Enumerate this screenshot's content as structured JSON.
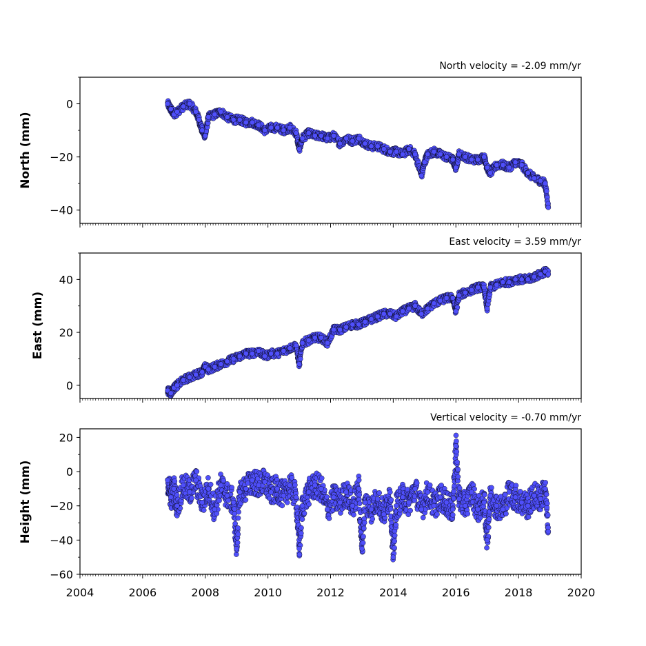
{
  "chart_data": [
    {
      "type": "scatter",
      "title": "North velocity = -2.09 mm/yr",
      "ylabel": "North (mm)",
      "xlabel": "",
      "xlim": [
        2004,
        2020
      ],
      "ylim": [
        -45,
        10
      ],
      "yticks": [
        0,
        -20,
        -40
      ],
      "marker_color": "#4f4ffb",
      "edge_color": "#000000",
      "series": [
        {
          "x": [
            2006.8,
            2006.9,
            2007.0,
            2007.1,
            2007.3,
            2007.5,
            2007.7,
            2007.8,
            2007.9,
            2008.0,
            2008.1,
            2008.3,
            2008.5,
            2008.7,
            2008.9,
            2009.1,
            2009.3,
            2009.5,
            2009.7,
            2009.9,
            2010.1,
            2010.3,
            2010.5,
            2010.7,
            2010.9,
            2011.0,
            2011.1,
            2011.3,
            2011.5,
            2011.7,
            2011.9,
            2012.1,
            2012.3,
            2012.5,
            2012.7,
            2012.9,
            2013.1,
            2013.3,
            2013.5,
            2013.7,
            2013.9,
            2014.1,
            2014.3,
            2014.5,
            2014.7,
            2014.9,
            2015.0,
            2015.1,
            2015.3,
            2015.5,
            2015.7,
            2015.9,
            2016.0,
            2016.1,
            2016.3,
            2016.5,
            2016.7,
            2016.9,
            2017.0,
            2017.1,
            2017.3,
            2017.5,
            2017.7,
            2017.9,
            2018.1,
            2018.3,
            2018.5,
            2018.7,
            2018.85,
            2018.95
          ],
          "y": [
            0,
            -2,
            -4,
            -3,
            -1,
            0,
            -3,
            -6,
            -10,
            -12,
            -5,
            -4,
            -3,
            -5,
            -6,
            -6,
            -7,
            -7,
            -8,
            -10,
            -9,
            -9,
            -10,
            -9,
            -11,
            -17,
            -13,
            -11,
            -12,
            -12,
            -13,
            -12,
            -15,
            -13,
            -14,
            -13,
            -15,
            -16,
            -16,
            -17,
            -18,
            -18,
            -19,
            -17,
            -19,
            -27,
            -22,
            -19,
            -18,
            -19,
            -20,
            -21,
            -24,
            -19,
            -20,
            -21,
            -21,
            -20,
            -24,
            -26,
            -23,
            -23,
            -24,
            -22,
            -23,
            -26,
            -28,
            -29,
            -30,
            -39
          ]
        }
      ]
    },
    {
      "type": "scatter",
      "title": "East velocity = 3.59 mm/yr",
      "ylabel": "East (mm)",
      "xlabel": "",
      "xlim": [
        2004,
        2020
      ],
      "ylim": [
        -5,
        50
      ],
      "yticks": [
        0,
        20,
        40
      ],
      "marker_color": "#4f4ffb",
      "edge_color": "#000000",
      "series": [
        {
          "x": [
            2006.8,
            2006.9,
            2007.0,
            2007.1,
            2007.3,
            2007.5,
            2007.7,
            2007.9,
            2008.0,
            2008.1,
            2008.3,
            2008.5,
            2008.7,
            2008.9,
            2009.1,
            2009.3,
            2009.5,
            2009.7,
            2009.9,
            2010.1,
            2010.3,
            2010.5,
            2010.7,
            2010.9,
            2011.0,
            2011.1,
            2011.3,
            2011.5,
            2011.7,
            2011.9,
            2012.1,
            2012.3,
            2012.5,
            2012.7,
            2012.9,
            2013.1,
            2013.3,
            2013.5,
            2013.7,
            2013.9,
            2014.1,
            2014.3,
            2014.5,
            2014.7,
            2014.9,
            2015.1,
            2015.3,
            2015.5,
            2015.7,
            2015.9,
            2016.0,
            2016.1,
            2016.3,
            2016.5,
            2016.7,
            2016.9,
            2017.0,
            2017.1,
            2017.3,
            2017.5,
            2017.7,
            2017.9,
            2018.1,
            2018.3,
            2018.5,
            2018.7,
            2018.85,
            2018.95
          ],
          "y": [
            -2,
            -3,
            -1,
            0,
            2,
            3,
            4,
            5,
            7,
            6,
            7,
            8,
            9,
            10,
            11,
            12,
            12,
            13,
            11,
            12,
            12,
            13,
            14,
            15,
            8,
            16,
            17,
            18,
            18,
            16,
            21,
            21,
            22,
            23,
            23,
            24,
            25,
            26,
            27,
            27,
            26,
            28,
            29,
            30,
            27,
            29,
            31,
            32,
            33,
            33,
            28,
            34,
            35,
            36,
            37,
            37,
            29,
            37,
            38,
            39,
            39,
            40,
            40,
            40,
            41,
            42,
            43,
            42
          ]
        }
      ]
    },
    {
      "type": "scatter",
      "title": "Vertical velocity = -0.70 mm/yr",
      "ylabel": "Height (mm)",
      "xlabel": "",
      "xlim": [
        2004,
        2020
      ],
      "ylim": [
        -60,
        25
      ],
      "yticks": [
        20,
        0,
        -20,
        -40,
        -60
      ],
      "xticks": [
        "2004",
        "2006",
        "2008",
        "2010",
        "2012",
        "2014",
        "2016",
        "2018",
        "2020"
      ],
      "marker_color": "#4f4ffb",
      "edge_color": "#000000",
      "series": [
        {
          "x": [
            2006.8,
            2006.9,
            2007.0,
            2007.1,
            2007.3,
            2007.5,
            2007.7,
            2007.9,
            2008.1,
            2008.3,
            2008.5,
            2008.7,
            2008.9,
            2009.0,
            2009.1,
            2009.3,
            2009.5,
            2009.7,
            2009.9,
            2010.1,
            2010.3,
            2010.5,
            2010.7,
            2010.9,
            2011.0,
            2011.1,
            2011.3,
            2011.5,
            2011.7,
            2011.9,
            2012.1,
            2012.3,
            2012.5,
            2012.7,
            2012.9,
            2013.0,
            2013.1,
            2013.3,
            2013.5,
            2013.7,
            2013.9,
            2014.0,
            2014.1,
            2014.3,
            2014.5,
            2014.7,
            2014.9,
            2015.1,
            2015.3,
            2015.5,
            2015.7,
            2015.9,
            2016.0,
            2016.1,
            2016.3,
            2016.5,
            2016.7,
            2016.9,
            2017.0,
            2017.1,
            2017.3,
            2017.5,
            2017.7,
            2017.9,
            2018.1,
            2018.3,
            2018.5,
            2018.7,
            2018.85,
            2018.95
          ],
          "y": [
            -5,
            -15,
            -10,
            -20,
            -8,
            -12,
            -5,
            -18,
            -10,
            -22,
            -8,
            -14,
            -18,
            -45,
            -12,
            -10,
            -5,
            -8,
            -6,
            -12,
            -10,
            -14,
            -8,
            -15,
            -45,
            -20,
            -12,
            -8,
            -10,
            -22,
            -15,
            -18,
            -12,
            -20,
            -10,
            -45,
            -18,
            -22,
            -16,
            -25,
            -12,
            -50,
            -20,
            -15,
            -18,
            -10,
            -22,
            -12,
            -20,
            -15,
            -18,
            -22,
            15,
            -16,
            -20,
            -12,
            -22,
            -18,
            -40,
            -14,
            -20,
            -22,
            -12,
            -15,
            -18,
            -20,
            -14,
            -16,
            -10,
            -35
          ]
        }
      ]
    }
  ]
}
